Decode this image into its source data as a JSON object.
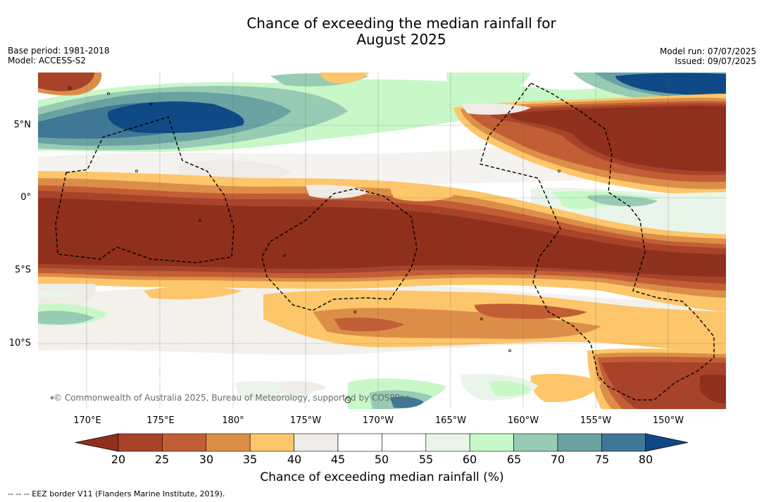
{
  "title_line1": "Chance of exceeding the median rainfall for",
  "title_line2": "August 2025",
  "base_period": "Base period: 1981-2018",
  "model": "Model: ACCESS-S2",
  "model_run": "Model run: 07/07/2025",
  "issued": "Issued: 09/07/2025",
  "copyright": "© Commonwealth of Australia 2025, Bureau of Meteorology, supported by COSPPac",
  "footnote": "--  --  -- EEZ border V11 (Flanders Marine Institute, 2019).",
  "colorbar": {
    "title": "Chance of exceeding median rainfall (%)",
    "ticks": [
      "20",
      "25",
      "30",
      "35",
      "40",
      "45",
      "50",
      "55",
      "60",
      "65",
      "70",
      "75",
      "80"
    ],
    "under_color": "#8f301d",
    "over_color": "#0f4a86",
    "colors": [
      "#a8432a",
      "#c25e35",
      "#dc8e48",
      "#fdc66a",
      "#efebe6",
      "#ffffff",
      "#ffffff",
      "#eaf5ea",
      "#c8f8c8",
      "#98cbb4",
      "#6aa2a2",
      "#3f7796"
    ]
  },
  "map": {
    "lat_labels": [
      "5°N",
      "0°",
      "5°S",
      "10°S"
    ],
    "lon_labels": [
      "170°E",
      "175°E",
      "180°",
      "175°W",
      "170°W",
      "165°W",
      "160°W",
      "155°W",
      "150°W"
    ]
  }
}
